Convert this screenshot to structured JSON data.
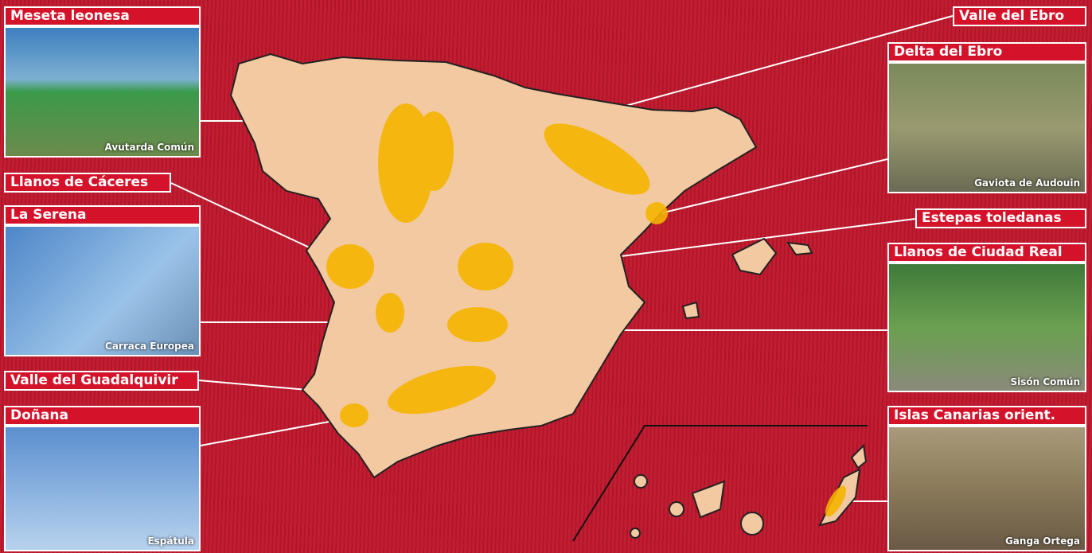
{
  "regions": [
    {
      "label": "Meseta leonesa",
      "caption": "Avutarda Común"
    },
    {
      "label": "Llanos de Cáceres"
    },
    {
      "label": "La Serena",
      "caption": "Carraca Europea"
    },
    {
      "label": "Valle del Guadalquivir"
    },
    {
      "label": "Doñana",
      "caption": "Espátula"
    },
    {
      "label": "Valle del Ebro"
    },
    {
      "label": "Delta del Ebro",
      "caption": "Gaviota de Audouin"
    },
    {
      "label": "Estepas toledanas"
    },
    {
      "label": "Llanos de Ciudad Real",
      "caption": "Sisón Común"
    },
    {
      "label": "Islas Canarias orient.",
      "caption": "Ganga Ortega"
    }
  ]
}
